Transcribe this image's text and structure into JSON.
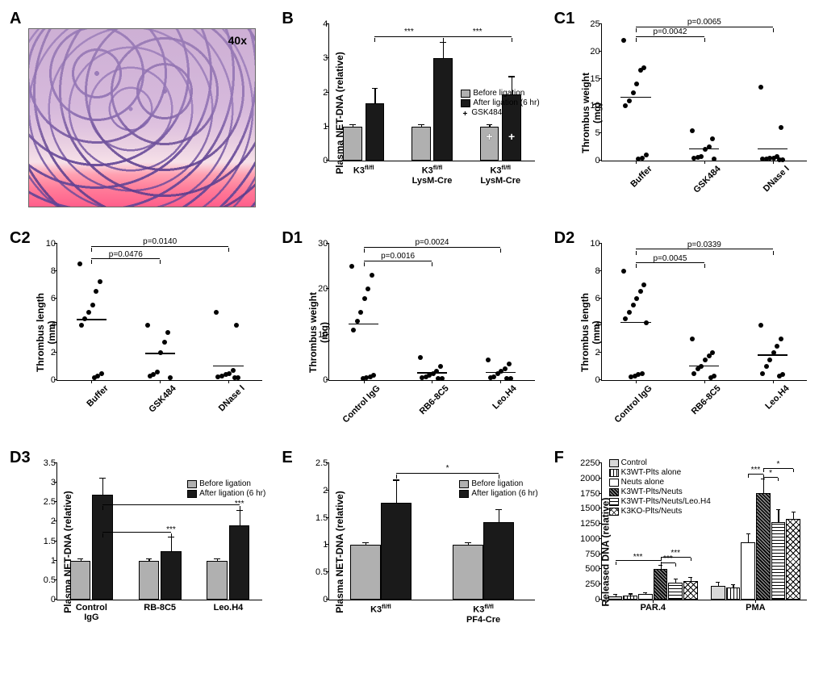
{
  "panels": {
    "A": {
      "label": "A",
      "magnification": "40x"
    },
    "B": {
      "label": "B",
      "type": "bar",
      "ylabel": "Plasma NET-DNA (relative)",
      "ylim": [
        0,
        4
      ],
      "yticks": [
        0,
        1,
        2,
        3,
        4
      ],
      "groups": [
        "K3ᶠˡ/ᶠˡ",
        "K3ᶠˡ/ᶠˡ\nLysM-Cre",
        "K3ᶠˡ/ᶠˡ\nLysM-Cre"
      ],
      "group_labels_sup": [
        {
          "main": "K3",
          "sup": "fl/fl",
          "sub": ""
        },
        {
          "main": "K3",
          "sup": "fl/fl",
          "sub": "LysM-Cre"
        },
        {
          "main": "K3",
          "sup": "fl/fl",
          "sub": "LysM-Cre"
        }
      ],
      "legend": [
        "Before ligation",
        "After ligation (6 hr)",
        "GSK484"
      ],
      "legend_colors": [
        "#b0b0b0",
        "#1a1a1a",
        "plus"
      ],
      "gsk_plus_on_group": 2,
      "bars": [
        {
          "group": 0,
          "cond": 0,
          "value": 1.0,
          "err": 0.03,
          "color": "#b0b0b0"
        },
        {
          "group": 0,
          "cond": 1,
          "value": 1.68,
          "err": 0.42,
          "color": "#1a1a1a"
        },
        {
          "group": 1,
          "cond": 0,
          "value": 1.0,
          "err": 0.03,
          "color": "#b0b0b0"
        },
        {
          "group": 1,
          "cond": 1,
          "value": 3.0,
          "err": 0.45,
          "color": "#1a1a1a"
        },
        {
          "group": 2,
          "cond": 0,
          "value": 1.0,
          "err": 0.03,
          "color": "#b0b0b0"
        },
        {
          "group": 2,
          "cond": 1,
          "value": 1.95,
          "err": 0.5,
          "color": "#1a1a1a"
        }
      ],
      "sig": [
        {
          "from_bar": 1,
          "to_bar": 3,
          "label": "***",
          "y": 3.6
        },
        {
          "from_bar": 3,
          "to_bar": 5,
          "label": "***",
          "y": 3.6
        }
      ]
    },
    "C1": {
      "label": "C1",
      "type": "scatter",
      "ylabel": "Thrombus weight\n(mg)",
      "ylim": [
        0,
        25
      ],
      "yticks": [
        0,
        5,
        10,
        15,
        20,
        25
      ],
      "categories": [
        "Buffer",
        "GSK484",
        "DNase I"
      ],
      "points": {
        "Buffer": [
          22,
          17,
          16.5,
          14,
          12.5,
          11,
          10,
          1,
          0.5,
          0.3
        ],
        "GSK484": [
          5.5,
          4,
          2.5,
          2,
          0.8,
          0.6,
          0.4,
          0.3
        ],
        "DNase I": [
          13.5,
          6,
          0.7,
          0.5,
          0.4,
          0.3,
          0.25,
          0.2,
          0.15
        ]
      },
      "means": {
        "Buffer": 11.5,
        "GSK484": 2.0,
        "DNase I": 2.0
      },
      "sig": [
        {
          "from": 0,
          "to": 1,
          "label": "p=0.0042",
          "y": 22.5
        },
        {
          "from": 0,
          "to": 2,
          "label": "p=0.0065",
          "y": 24.3
        }
      ]
    },
    "C2": {
      "label": "C2",
      "type": "scatter",
      "ylabel": "Thrombus length\n(mm)",
      "ylim": [
        0,
        10
      ],
      "yticks": [
        0,
        2,
        4,
        6,
        8,
        10
      ],
      "categories": [
        "Buffer",
        "GSK484",
        "DNase I"
      ],
      "points": {
        "Buffer": [
          8.5,
          7.2,
          6.5,
          5.5,
          5,
          4.5,
          4,
          0.5,
          0.3,
          0.2
        ],
        "GSK484": [
          4,
          3.5,
          2.8,
          2,
          0.6,
          0.4,
          0.3,
          0.2
        ],
        "DNase I": [
          5,
          4,
          0.7,
          0.5,
          0.4,
          0.3,
          0.25,
          0.2,
          0.15
        ]
      },
      "means": {
        "Buffer": 4.4,
        "GSK484": 1.9,
        "DNase I": 1.0
      },
      "sig": [
        {
          "from": 0,
          "to": 1,
          "label": "p=0.0476",
          "y": 8.8
        },
        {
          "from": 0,
          "to": 2,
          "label": "p=0.0140",
          "y": 9.7
        }
      ]
    },
    "D1": {
      "label": "D1",
      "type": "scatter",
      "ylabel": "Thrombus weight\n(mg)",
      "ylim": [
        0,
        30
      ],
      "yticks": [
        0,
        10,
        20,
        30
      ],
      "categories": [
        "Control IgG",
        "RB6-8C5",
        "Leo.H4"
      ],
      "points": {
        "Control IgG": [
          25,
          23,
          20,
          18,
          15,
          13,
          11,
          1,
          0.8,
          0.5,
          0.3
        ],
        "RB6-8C5": [
          5,
          3,
          2,
          1.5,
          1,
          0.8,
          0.5,
          0.4,
          0.3
        ],
        "Leo.H4": [
          4.5,
          3.5,
          2.5,
          2,
          1.5,
          0.8,
          0.5,
          0.4,
          0.3
        ]
      },
      "means": {
        "Control IgG": 12.2,
        "RB6-8C5": 1.5,
        "Leo.H4": 1.6
      },
      "sig": [
        {
          "from": 0,
          "to": 1,
          "label": "p=0.0016",
          "y": 26
        },
        {
          "from": 0,
          "to": 2,
          "label": "p=0.0024",
          "y": 29
        }
      ]
    },
    "D2": {
      "label": "D2",
      "type": "scatter",
      "ylabel": "Thrombus length\n(mm)",
      "ylim": [
        0,
        10
      ],
      "yticks": [
        0,
        2,
        4,
        6,
        8,
        10
      ],
      "categories": [
        "Control IgG",
        "RB6-8C5",
        "Leo.H4"
      ],
      "points": {
        "Control IgG": [
          8,
          7,
          6.5,
          6,
          5.5,
          5,
          4.5,
          4.2,
          0.5,
          0.4,
          0.3,
          0.25
        ],
        "RB6-8C5": [
          3,
          2,
          1.8,
          1.5,
          1,
          0.8,
          0.5,
          0.3,
          0.2
        ],
        "Leo.H4": [
          4,
          3,
          2.5,
          2,
          1.5,
          1,
          0.5,
          0.4,
          0.3
        ]
      },
      "means": {
        "Control IgG": 4.2,
        "RB6-8C5": 1.0,
        "Leo.H4": 1.8
      },
      "sig": [
        {
          "from": 0,
          "to": 1,
          "label": "p=0.0045",
          "y": 8.5
        },
        {
          "from": 0,
          "to": 2,
          "label": "p=0.0339",
          "y": 9.5
        }
      ]
    },
    "D3": {
      "label": "D3",
      "type": "bar",
      "ylabel": "Plasma NET-DNA (relative)",
      "ylim": [
        0,
        3.5
      ],
      "yticks": [
        0,
        0.5,
        1.0,
        1.5,
        2.0,
        2.5,
        3.0,
        3.5
      ],
      "categories": [
        "Control\nIgG",
        "RB-8C5",
        "Leo.H4"
      ],
      "legend": [
        "Before ligation",
        "After ligation (6 hr)"
      ],
      "legend_colors": [
        "#b0b0b0",
        "#1a1a1a"
      ],
      "bars": [
        {
          "group": 0,
          "cond": 0,
          "value": 1.0,
          "err": 0.04,
          "color": "#b0b0b0"
        },
        {
          "group": 0,
          "cond": 1,
          "value": 2.7,
          "err": 0.4,
          "color": "#1a1a1a"
        },
        {
          "group": 1,
          "cond": 0,
          "value": 1.0,
          "err": 0.03,
          "color": "#b0b0b0"
        },
        {
          "group": 1,
          "cond": 1,
          "value": 1.25,
          "err": 0.35,
          "color": "#1a1a1a"
        },
        {
          "group": 2,
          "cond": 0,
          "value": 1.0,
          "err": 0.03,
          "color": "#b0b0b0"
        },
        {
          "group": 2,
          "cond": 1,
          "value": 1.9,
          "err": 0.38,
          "color": "#1a1a1a"
        }
      ],
      "sig": [
        {
          "from_bar": 1,
          "to_bar": 3,
          "label": "***",
          "y": 1.7,
          "below": true
        },
        {
          "from_bar": 1,
          "to_bar": 5,
          "label": "***",
          "y": 2.4,
          "below": true
        },
        {
          "converge_from": [
            3,
            5
          ],
          "to_top": 3.2
        }
      ]
    },
    "E": {
      "label": "E",
      "type": "bar",
      "ylabel": "Plasma NET-DNA (relative)",
      "ylim": [
        0,
        2.5
      ],
      "yticks": [
        0,
        0.5,
        1.0,
        1.5,
        2.0,
        2.5
      ],
      "group_labels_sup": [
        {
          "main": "K3",
          "sup": "fl/fl",
          "sub": ""
        },
        {
          "main": "K3",
          "sup": "fl/fl",
          "sub": "PF4-Cre"
        }
      ],
      "legend": [
        "Before ligation",
        "After ligation (6 hr)"
      ],
      "legend_colors": [
        "#b0b0b0",
        "#1a1a1a"
      ],
      "bars": [
        {
          "group": 0,
          "cond": 0,
          "value": 1.0,
          "err": 0.03,
          "color": "#b0b0b0"
        },
        {
          "group": 0,
          "cond": 1,
          "value": 1.78,
          "err": 0.4,
          "color": "#1a1a1a"
        },
        {
          "group": 1,
          "cond": 0,
          "value": 1.0,
          "err": 0.03,
          "color": "#b0b0b0"
        },
        {
          "group": 1,
          "cond": 1,
          "value": 1.42,
          "err": 0.22,
          "color": "#1a1a1a"
        }
      ],
      "sig": [
        {
          "from_bar": 1,
          "to_bar": 3,
          "label": "*",
          "y": 2.3
        }
      ]
    },
    "F": {
      "label": "F",
      "type": "bar",
      "ylabel": "Released DNA (relative)",
      "ylim": [
        0,
        2250
      ],
      "yticks": [
        0,
        250,
        500,
        750,
        1000,
        1250,
        1500,
        1750,
        2000,
        2250
      ],
      "categories": [
        "PAR.4",
        "PMA"
      ],
      "series": [
        "Control",
        "K3WT-Plts alone",
        "Neuts alone",
        "K3WT-Plts/Neuts",
        "K3WT-Plts/Neuts/Leo.H4",
        "K3KO-Plts/Neuts"
      ],
      "patterns": [
        "solid-lightgray",
        "vstripes",
        "solid-white",
        "diag-dense",
        "hstripes",
        "crosshatch"
      ],
      "bars": [
        {
          "group": 0,
          "cond": 0,
          "value": 60,
          "err": 15
        },
        {
          "group": 0,
          "cond": 1,
          "value": 70,
          "err": 15
        },
        {
          "group": 0,
          "cond": 2,
          "value": 90,
          "err": 18
        },
        {
          "group": 0,
          "cond": 3,
          "value": 500,
          "err": 60
        },
        {
          "group": 0,
          "cond": 4,
          "value": 280,
          "err": 50
        },
        {
          "group": 0,
          "cond": 5,
          "value": 310,
          "err": 45
        },
        {
          "group": 1,
          "cond": 0,
          "value": 230,
          "err": 50
        },
        {
          "group": 1,
          "cond": 1,
          "value": 200,
          "err": 40
        },
        {
          "group": 1,
          "cond": 2,
          "value": 940,
          "err": 140
        },
        {
          "group": 1,
          "cond": 3,
          "value": 1760,
          "err": 220
        },
        {
          "group": 1,
          "cond": 4,
          "value": 1280,
          "err": 200
        },
        {
          "group": 1,
          "cond": 5,
          "value": 1330,
          "err": 110
        }
      ],
      "sig": [
        {
          "group": 0,
          "from_cond": 0,
          "to_cond": 3,
          "label": "***",
          "y": 620
        },
        {
          "group": 0,
          "from_cond": 3,
          "to_cond": 4,
          "label": "***",
          "y": 590
        },
        {
          "group": 0,
          "from_cond": 3,
          "to_cond": 5,
          "label": "***",
          "y": 680
        },
        {
          "group": 1,
          "from_cond": 2,
          "to_cond": 3,
          "label": "***",
          "y": 2050
        },
        {
          "group": 1,
          "from_cond": 3,
          "to_cond": 4,
          "label": "*",
          "y": 2000
        },
        {
          "group": 1,
          "from_cond": 3,
          "to_cond": 5,
          "label": "*",
          "y": 2150
        }
      ]
    }
  }
}
